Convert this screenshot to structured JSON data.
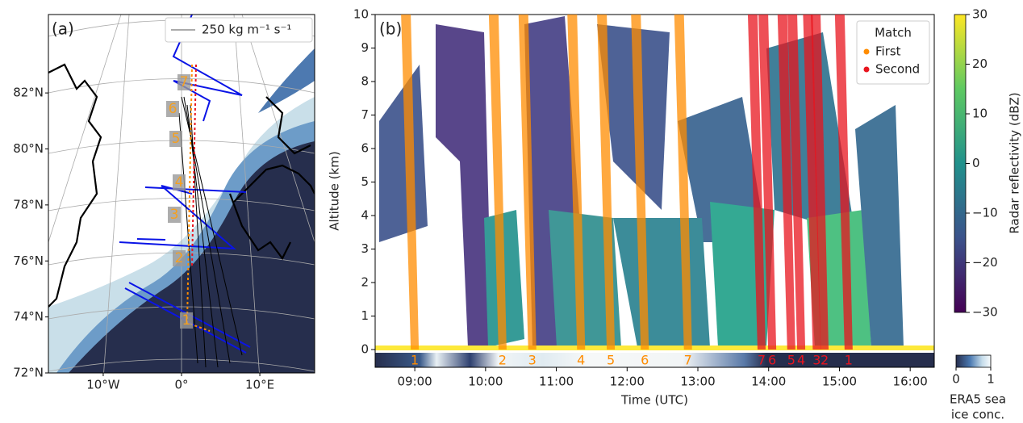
{
  "chart_data": [
    {
      "type": "map",
      "panel_label": "(a)",
      "legend_label": "250 kg m⁻¹ s⁻¹",
      "xlim": [
        -17,
        17
      ],
      "xticks": [
        {
          "value": -10,
          "label": "10°W"
        },
        {
          "value": 0,
          "label": "0°"
        },
        {
          "value": 10,
          "label": "10°E"
        }
      ],
      "ylim": [
        72,
        84.8
      ],
      "yticks": [
        {
          "value": 72,
          "label": "72°N"
        },
        {
          "value": 74,
          "label": "74°N"
        },
        {
          "value": 76,
          "label": "76°N"
        },
        {
          "value": 78,
          "label": "78°N"
        },
        {
          "value": 80,
          "label": "80°N"
        },
        {
          "value": 82,
          "label": "82°N"
        }
      ],
      "flight_labels": [
        "1",
        "2",
        "3",
        "4",
        "5",
        "6",
        "7"
      ],
      "flight_label_color": "#f5a020"
    },
    {
      "type": "heatmap",
      "panel_label": "(b)",
      "x_label": "Time (UTC)",
      "y_label": "Altitude (km)",
      "xlim": [
        8.44,
        16.34
      ],
      "xticks": [
        {
          "value": 9,
          "label": "09:00"
        },
        {
          "value": 10,
          "label": "10:00"
        },
        {
          "value": 11,
          "label": "11:00"
        },
        {
          "value": 12,
          "label": "12:00"
        },
        {
          "value": 13,
          "label": "13:00"
        },
        {
          "value": 14,
          "label": "14:00"
        },
        {
          "value": 15,
          "label": "15:00"
        },
        {
          "value": 16,
          "label": "16:00"
        }
      ],
      "ylim": [
        -0.53,
        10
      ],
      "yticks": [
        0,
        1,
        2,
        3,
        4,
        5,
        6,
        7,
        8,
        9,
        10
      ],
      "legend_title": "Match",
      "series": [
        {
          "name": "First",
          "color": "#ff8c00",
          "x": [
            9.0,
            10.24,
            10.66,
            11.35,
            11.77,
            12.25,
            12.86
          ],
          "labels": [
            "1",
            "2",
            "3",
            "4",
            "5",
            "6",
            "7"
          ]
        },
        {
          "name": "Second",
          "color": "#e8141e",
          "x": [
            13.9,
            14.05,
            14.32,
            14.46,
            14.68,
            14.79,
            15.13
          ],
          "labels": [
            "7",
            "6",
            "5",
            "4",
            "3",
            "2",
            "1"
          ]
        }
      ],
      "colorbar": {
        "label": "Radar reflectivity (dBZ)",
        "lim": [
          -30,
          30
        ],
        "ticks": [
          {
            "value": -30,
            "label": "−30"
          },
          {
            "value": -20,
            "label": "−20"
          },
          {
            "value": -10,
            "label": "−10"
          },
          0,
          10,
          20,
          30
        ]
      },
      "ice_colorbar": {
        "label": [
          "ERA5 sea",
          "ice conc."
        ],
        "lim": [
          0,
          1
        ],
        "ticks": [
          0,
          1
        ]
      }
    }
  ]
}
